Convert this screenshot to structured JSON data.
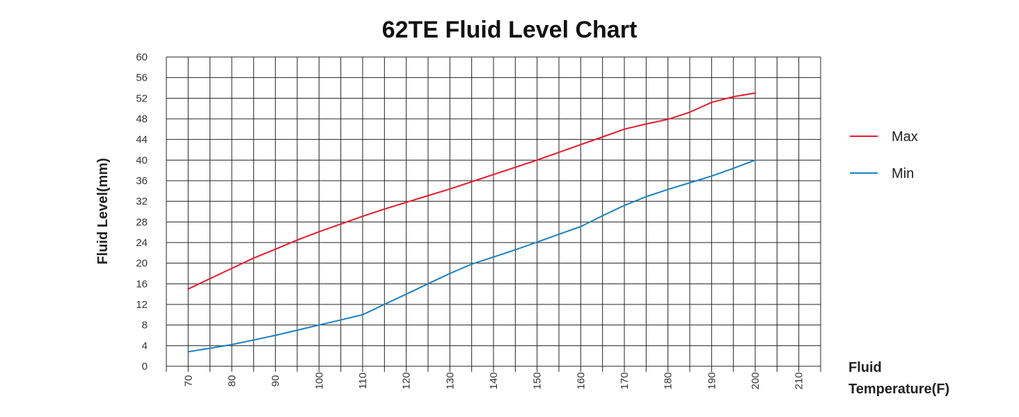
{
  "chart_data": {
    "type": "line",
    "title": "62TE Fluid Level Chart",
    "ylabel": "Fluid Level(mm)",
    "xlabel": [
      "Fluid",
      "Temperature(F)"
    ],
    "x_ticks": [
      70,
      80,
      90,
      100,
      110,
      120,
      130,
      140,
      150,
      160,
      170,
      180,
      190,
      200,
      210
    ],
    "y_ticks": [
      0,
      4,
      8,
      12,
      16,
      20,
      24,
      28,
      32,
      36,
      40,
      44,
      48,
      52,
      56,
      60
    ],
    "xlim": [
      65,
      215
    ],
    "ylim": [
      0,
      60
    ],
    "grid": true,
    "legend_position": "right",
    "series": [
      {
        "name": "Max",
        "color": "#e8192c",
        "x": [
          70,
          75,
          80,
          85,
          90,
          95,
          100,
          105,
          110,
          115,
          120,
          125,
          130,
          135,
          140,
          145,
          150,
          155,
          160,
          165,
          170,
          175,
          180,
          185,
          190,
          195,
          200
        ],
        "y": [
          15,
          17,
          19,
          21,
          22.7,
          24.5,
          26.1,
          27.6,
          29.1,
          30.5,
          31.8,
          33.1,
          34.4,
          35.8,
          37.2,
          38.6,
          40,
          41.5,
          43,
          44.5,
          46,
          47,
          47.9,
          49.3,
          51.2,
          52.3,
          53
        ]
      },
      {
        "name": "Min",
        "color": "#1a7fc1",
        "x": [
          70,
          75,
          80,
          85,
          90,
          95,
          100,
          105,
          110,
          115,
          120,
          125,
          130,
          135,
          140,
          145,
          150,
          155,
          160,
          165,
          170,
          175,
          180,
          185,
          190,
          195,
          200
        ],
        "y": [
          2.8,
          3.5,
          4.2,
          5.1,
          6,
          7,
          8,
          9,
          10,
          12,
          14,
          16,
          18,
          19.8,
          21.2,
          22.6,
          24.1,
          25.6,
          27.1,
          29.2,
          31.2,
          32.9,
          34.3,
          35.6,
          36.9,
          38.4,
          40
        ]
      }
    ]
  }
}
